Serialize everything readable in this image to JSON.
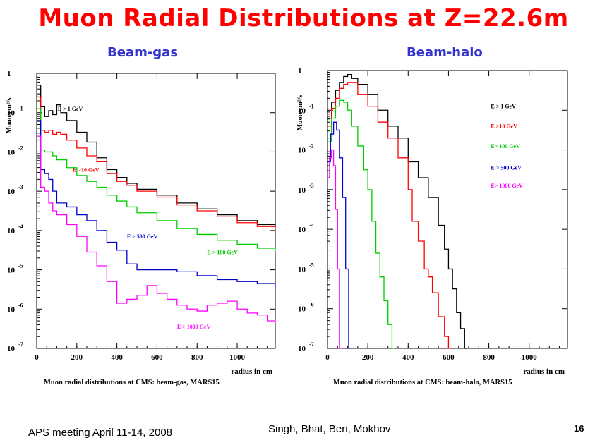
{
  "slide": {
    "title": "Muon Radial Distributions at Z=22.6m",
    "footer_left": "APS meeting April 11-14, 2008",
    "footer_center": "Singh, Bhat, Beri, Mokhov",
    "page_number": "16",
    "title_color": "#ff0000",
    "subtitle_color": "#3333cc"
  },
  "chart_data": [
    {
      "type": "line",
      "subtitle": "Beam-gas",
      "caption": "Muon radial distributions at CMS: beam-gas, MARS15",
      "xlabel": "radius in cm",
      "ylabel": "Muon/cm²/s",
      "xlim": [
        0,
        1190
      ],
      "ylim_log10": [
        -7,
        0
      ],
      "y_scale": "log",
      "x_ticks": [
        "0",
        "200",
        "400",
        "600",
        "800",
        "1000"
      ],
      "y_ticks": [
        {
          "base": "1",
          "exp": ""
        },
        {
          "base": "10",
          "exp": "-1"
        },
        {
          "base": "10",
          "exp": "-2"
        },
        {
          "base": "10",
          "exp": "-3"
        },
        {
          "base": "10",
          "exp": "-4"
        },
        {
          "base": "10",
          "exp": "-5"
        },
        {
          "base": "10",
          "exp": "-6"
        },
        {
          "base": "10",
          "exp": "-7"
        }
      ],
      "series": [
        {
          "name": "E > 1 GeV",
          "color": "#000000",
          "label_pos": [
            105,
            -0.95
          ],
          "x": [
            0,
            20,
            40,
            60,
            80,
            100,
            120,
            150,
            200,
            250,
            300,
            350,
            400,
            450,
            500,
            600,
            700,
            800,
            900,
            1000,
            1100,
            1190
          ],
          "y": [
            -0.3,
            -0.85,
            -1.1,
            -0.95,
            -1.05,
            -0.8,
            -1.0,
            -1.2,
            -1.5,
            -1.75,
            -2.15,
            -2.45,
            -2.65,
            -2.8,
            -2.95,
            -3.1,
            -3.3,
            -3.45,
            -3.6,
            -3.75,
            -3.85,
            -3.95
          ]
        },
        {
          "name": "E >10 GeV",
          "color": "#ff0000",
          "label_pos": [
            180,
            -2.5
          ],
          "x": [
            0,
            20,
            40,
            60,
            80,
            100,
            120,
            150,
            200,
            250,
            300,
            350,
            400,
            450,
            500,
            600,
            700,
            800,
            900,
            1000,
            1100,
            1190
          ],
          "y": [
            -0.6,
            -1.45,
            -1.5,
            -1.45,
            -1.55,
            -1.5,
            -1.55,
            -1.7,
            -1.9,
            -2.1,
            -2.25,
            -2.55,
            -2.75,
            -2.85,
            -3.0,
            -3.15,
            -3.35,
            -3.5,
            -3.65,
            -3.8,
            -3.9,
            -4.0
          ]
        },
        {
          "name": "E > 100 GeV",
          "color": "#00cc00",
          "label_pos": [
            850,
            -4.6
          ],
          "x": [
            0,
            20,
            40,
            60,
            80,
            100,
            150,
            200,
            250,
            300,
            350,
            400,
            450,
            500,
            600,
            700,
            800,
            900,
            1000,
            1100,
            1190
          ],
          "y": [
            -0.9,
            -1.95,
            -2.0,
            -2.0,
            -2.1,
            -2.2,
            -2.4,
            -2.6,
            -2.75,
            -2.9,
            -3.1,
            -3.25,
            -3.4,
            -3.55,
            -3.75,
            -3.95,
            -4.1,
            -4.25,
            -4.35,
            -4.45,
            -4.55
          ]
        },
        {
          "name": "E > 500 GeV",
          "color": "#0000cc",
          "label_pos": [
            450,
            -4.2
          ],
          "x": [
            0,
            20,
            40,
            60,
            80,
            100,
            150,
            200,
            250,
            300,
            350,
            400,
            450,
            500,
            600,
            700,
            800,
            900,
            1000,
            1100,
            1190
          ],
          "y": [
            -1.2,
            -2.45,
            -2.55,
            -2.7,
            -3.0,
            -3.3,
            -3.4,
            -3.6,
            -3.75,
            -4.0,
            -4.3,
            -4.5,
            -4.85,
            -5.0,
            -5.0,
            -5.05,
            -5.15,
            -5.25,
            -5.3,
            -5.35,
            -5.45
          ]
        },
        {
          "name": "E > 1000 GeV",
          "color": "#ff00ff",
          "label_pos": [
            700,
            -6.5
          ],
          "x": [
            0,
            20,
            40,
            60,
            80,
            100,
            150,
            200,
            250,
            300,
            350,
            400,
            450,
            500,
            550,
            600,
            650,
            700,
            750,
            800,
            850,
            900,
            950,
            1000,
            1050,
            1100,
            1150,
            1190
          ],
          "y": [
            -1.6,
            -2.9,
            -3.0,
            -3.3,
            -3.5,
            -3.6,
            -3.85,
            -4.15,
            -4.55,
            -4.9,
            -5.3,
            -5.85,
            -5.75,
            -5.65,
            -5.4,
            -5.6,
            -5.75,
            -5.9,
            -6.0,
            -6.05,
            -5.9,
            -5.85,
            -5.8,
            -6.0,
            -6.1,
            -6.15,
            -6.3,
            -6.35
          ]
        }
      ]
    },
    {
      "type": "line",
      "subtitle": "Beam-halo",
      "caption": "Muon radial distributions at CMS: beam-halo, MARS15",
      "xlabel": "radius in cm",
      "ylabel": "Muon/cm²/s",
      "xlim": [
        0,
        1190
      ],
      "ylim_log10": [
        -7,
        0
      ],
      "y_scale": "log",
      "x_ticks": [
        "0",
        "200",
        "400",
        "600",
        "800",
        "1000"
      ],
      "y_ticks": [
        {
          "base": "1",
          "exp": ""
        },
        {
          "base": "10",
          "exp": "-1"
        },
        {
          "base": "10",
          "exp": "-2"
        },
        {
          "base": "10",
          "exp": "-3"
        },
        {
          "base": "10",
          "exp": "-4"
        },
        {
          "base": "10",
          "exp": "-5"
        },
        {
          "base": "10",
          "exp": "-6"
        },
        {
          "base": "10",
          "exp": "-7"
        }
      ],
      "series": [
        {
          "name": "E > 1 GeV",
          "color": "#000000",
          "label_pos": [
            810,
            -0.95
          ],
          "x": [
            0,
            20,
            40,
            60,
            80,
            100,
            120,
            150,
            200,
            250,
            300,
            350,
            400,
            450,
            500,
            550,
            580,
            600,
            620,
            640,
            660,
            680
          ],
          "y": [
            -1.2,
            -0.8,
            -0.5,
            -0.3,
            -0.15,
            -0.1,
            -0.2,
            -0.35,
            -0.6,
            -1.0,
            -1.4,
            -1.7,
            -2.3,
            -2.7,
            -3.2,
            -3.9,
            -4.5,
            -5.0,
            -5.5,
            -6.1,
            -6.5,
            -7.0
          ]
        },
        {
          "name": "E  >10 GeV",
          "color": "#ff0000",
          "label_pos": [
            810,
            -1.45
          ],
          "x": [
            0,
            20,
            40,
            60,
            80,
            100,
            150,
            200,
            250,
            300,
            350,
            400,
            420,
            450,
            480,
            500,
            520,
            550,
            580,
            600
          ],
          "y": [
            -1.4,
            -0.95,
            -0.7,
            -0.45,
            -0.35,
            -0.3,
            -0.6,
            -0.9,
            -1.3,
            -1.7,
            -2.2,
            -3.0,
            -3.8,
            -4.3,
            -5.0,
            -5.2,
            -5.6,
            -6.2,
            -6.7,
            -7.0
          ]
        },
        {
          "name": "E> 100 GeV",
          "color": "#00cc00",
          "label_pos": [
            810,
            -1.95
          ],
          "x": [
            0,
            20,
            40,
            60,
            80,
            100,
            120,
            150,
            180,
            200,
            220,
            240,
            260,
            280,
            300,
            320
          ],
          "y": [
            -1.8,
            -1.2,
            -0.9,
            -0.75,
            -0.8,
            -1.0,
            -1.4,
            -1.9,
            -2.5,
            -3.0,
            -3.8,
            -4.6,
            -5.2,
            -5.8,
            -6.4,
            -7.0
          ]
        },
        {
          "name": "E > 500 GeV",
          "color": "#0000cc",
          "label_pos": [
            810,
            -2.5
          ],
          "x": [
            0,
            15,
            30,
            45,
            60,
            75,
            90,
            105
          ],
          "y": [
            -2.3,
            -1.6,
            -1.3,
            -1.5,
            -2.2,
            -3.2,
            -5.0,
            -7.0
          ]
        },
        {
          "name": "E> 1000 GeV",
          "color": "#ff00ff",
          "label_pos": [
            810,
            -2.95
          ],
          "x": [
            0,
            10,
            20,
            30,
            40,
            50,
            60
          ],
          "y": [
            -2.7,
            -2.2,
            -2.0,
            -2.4,
            -3.5,
            -5.0,
            -7.0
          ]
        }
      ]
    }
  ]
}
